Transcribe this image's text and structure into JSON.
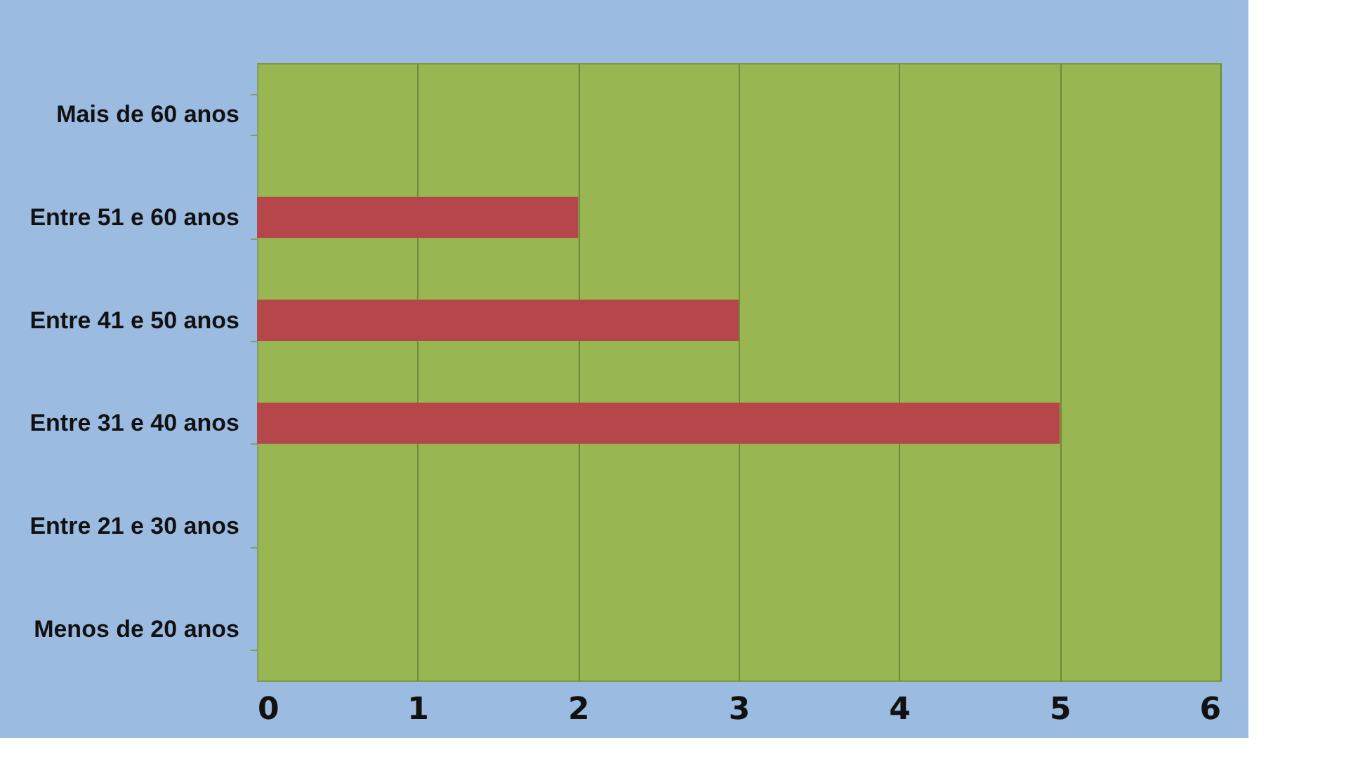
{
  "chart_data": {
    "type": "bar",
    "orientation": "horizontal",
    "categories": [
      "Mais de 60 anos",
      "Entre 51 e 60 anos",
      "Entre 41 e 50 anos",
      "Entre 31 e 40 anos",
      "Entre 21 e 30 anos",
      "Menos de 20 anos"
    ],
    "values": [
      0,
      2,
      3,
      5,
      0,
      0
    ],
    "color": "#b5474a",
    "xlim": [
      0,
      6
    ],
    "xticks": [
      0,
      1,
      2,
      3,
      4,
      5,
      6
    ],
    "grid": "x"
  }
}
